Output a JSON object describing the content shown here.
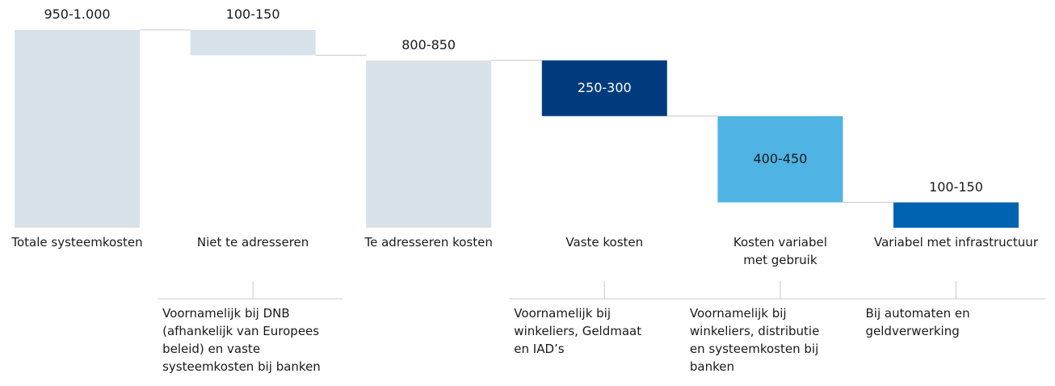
{
  "chart_data": {
    "type": "waterfall",
    "categories": [
      "Totale systeemkosten",
      "Niet te adresseren",
      "Te adresseren kosten",
      "Vaste kosten",
      "Kosten variabel\nmet gebruik",
      "Variabel met infrastructuur"
    ],
    "values": [
      975,
      125,
      825,
      275,
      425,
      125
    ],
    "value_labels": [
      "950-1.000",
      "100-150",
      "800-850",
      "250-300",
      "400-450",
      "100-150"
    ],
    "kinds": [
      "total",
      "delta",
      "total",
      "delta",
      "delta",
      "delta"
    ],
    "colors": [
      "#d9e1e8",
      "#d9e1e8",
      "#d9e1e8",
      "#003c7d",
      "#4fb3e3",
      "#0063b1"
    ],
    "label_colors": [
      "#1a1a1a",
      "#1a1a1a",
      "#1a1a1a",
      "#ffffff",
      "#1a1a1a",
      "#1a1a1a"
    ],
    "annotations": [
      null,
      "Voornamelijk bij DNB\n(afhankelijk van Europees\nbeleid) en vaste\nsysteemkosten bij banken",
      null,
      "Voornamelijk bij\nwinkeliers, Geldmaat\nen IAD’s",
      "Voornamelijk bij\nwinkeliers, distributie\nen systeemkosten bij\nbanken",
      "Bij automaten en\ngeldverwerking"
    ]
  }
}
